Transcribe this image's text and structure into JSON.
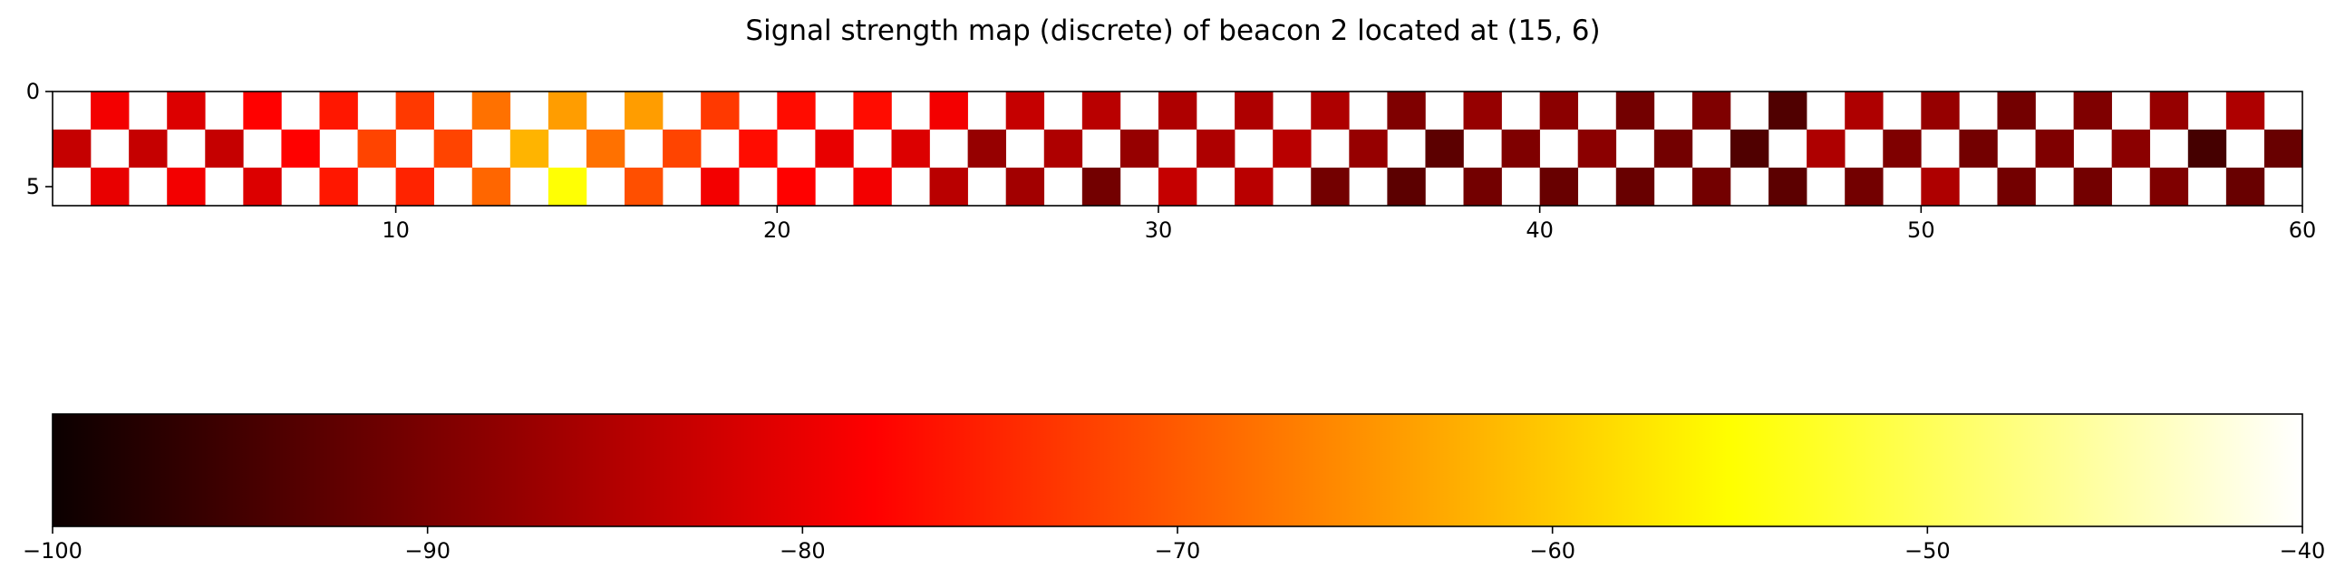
{
  "chart_data": [
    {
      "type": "heatmap",
      "title": "Signal strength map (discrete) of beacon 2 located at (15, 6)",
      "xlim": [
        1,
        60
      ],
      "ylim": [
        0,
        6
      ],
      "y_inverted": true,
      "x_ticks": [
        10,
        20,
        30,
        40,
        50,
        60
      ],
      "y_ticks": [
        0,
        5
      ],
      "colormap": "hot",
      "vmin": -100,
      "vmax": -40,
      "background": "#ffffff",
      "cells": [
        {
          "x": 3,
          "y": 1,
          "v": -80
        },
        {
          "x": 5,
          "y": 1,
          "v": -82
        },
        {
          "x": 7,
          "y": 1,
          "v": -78
        },
        {
          "x": 9,
          "y": 1,
          "v": -76
        },
        {
          "x": 11,
          "y": 1,
          "v": -73
        },
        {
          "x": 13,
          "y": 1,
          "v": -68
        },
        {
          "x": 15,
          "y": 1,
          "v": -64
        },
        {
          "x": 17,
          "y": 1,
          "v": -64
        },
        {
          "x": 19,
          "y": 1,
          "v": -73
        },
        {
          "x": 21,
          "y": 1,
          "v": -77
        },
        {
          "x": 23,
          "y": 1,
          "v": -77
        },
        {
          "x": 25,
          "y": 1,
          "v": -80
        },
        {
          "x": 27,
          "y": 1,
          "v": -84
        },
        {
          "x": 29,
          "y": 1,
          "v": -85
        },
        {
          "x": 31,
          "y": 1,
          "v": -86
        },
        {
          "x": 33,
          "y": 1,
          "v": -86
        },
        {
          "x": 35,
          "y": 1,
          "v": -86
        },
        {
          "x": 37,
          "y": 1,
          "v": -90
        },
        {
          "x": 39,
          "y": 1,
          "v": -88
        },
        {
          "x": 41,
          "y": 1,
          "v": -89
        },
        {
          "x": 43,
          "y": 1,
          "v": -91
        },
        {
          "x": 45,
          "y": 1,
          "v": -90
        },
        {
          "x": 47,
          "y": 1,
          "v": -94
        },
        {
          "x": 49,
          "y": 1,
          "v": -86
        },
        {
          "x": 51,
          "y": 1,
          "v": -88
        },
        {
          "x": 53,
          "y": 1,
          "v": -91
        },
        {
          "x": 55,
          "y": 1,
          "v": -90
        },
        {
          "x": 57,
          "y": 1,
          "v": -88
        },
        {
          "x": 59,
          "y": 1,
          "v": -86
        },
        {
          "x": 2,
          "y": 3,
          "v": -84
        },
        {
          "x": 4,
          "y": 3,
          "v": -84
        },
        {
          "x": 6,
          "y": 3,
          "v": -84
        },
        {
          "x": 8,
          "y": 3,
          "v": -78
        },
        {
          "x": 10,
          "y": 3,
          "v": -72
        },
        {
          "x": 12,
          "y": 3,
          "v": -72
        },
        {
          "x": 14,
          "y": 3,
          "v": -62
        },
        {
          "x": 16,
          "y": 3,
          "v": -68
        },
        {
          "x": 18,
          "y": 3,
          "v": -72
        },
        {
          "x": 20,
          "y": 3,
          "v": -77
        },
        {
          "x": 22,
          "y": 3,
          "v": -81
        },
        {
          "x": 24,
          "y": 3,
          "v": -82
        },
        {
          "x": 26,
          "y": 3,
          "v": -88
        },
        {
          "x": 28,
          "y": 3,
          "v": -86
        },
        {
          "x": 30,
          "y": 3,
          "v": -88
        },
        {
          "x": 32,
          "y": 3,
          "v": -86
        },
        {
          "x": 34,
          "y": 3,
          "v": -85
        },
        {
          "x": 36,
          "y": 3,
          "v": -88
        },
        {
          "x": 38,
          "y": 3,
          "v": -93
        },
        {
          "x": 40,
          "y": 3,
          "v": -90
        },
        {
          "x": 42,
          "y": 3,
          "v": -89
        },
        {
          "x": 44,
          "y": 3,
          "v": -91
        },
        {
          "x": 46,
          "y": 3,
          "v": -94
        },
        {
          "x": 48,
          "y": 3,
          "v": -86
        },
        {
          "x": 50,
          "y": 3,
          "v": -90
        },
        {
          "x": 52,
          "y": 3,
          "v": -91
        },
        {
          "x": 54,
          "y": 3,
          "v": -90
        },
        {
          "x": 56,
          "y": 3,
          "v": -89
        },
        {
          "x": 58,
          "y": 3,
          "v": -95
        },
        {
          "x": 60,
          "y": 3,
          "v": -92
        },
        {
          "x": 3,
          "y": 5,
          "v": -81
        },
        {
          "x": 5,
          "y": 5,
          "v": -80
        },
        {
          "x": 7,
          "y": 5,
          "v": -82
        },
        {
          "x": 9,
          "y": 5,
          "v": -76
        },
        {
          "x": 11,
          "y": 5,
          "v": -75
        },
        {
          "x": 13,
          "y": 5,
          "v": -69
        },
        {
          "x": 15,
          "y": 5,
          "v": -55
        },
        {
          "x": 17,
          "y": 5,
          "v": -71
        },
        {
          "x": 19,
          "y": 5,
          "v": -80
        },
        {
          "x": 21,
          "y": 5,
          "v": -78
        },
        {
          "x": 23,
          "y": 5,
          "v": -80
        },
        {
          "x": 25,
          "y": 5,
          "v": -85
        },
        {
          "x": 27,
          "y": 5,
          "v": -87
        },
        {
          "x": 29,
          "y": 5,
          "v": -91
        },
        {
          "x": 31,
          "y": 5,
          "v": -84
        },
        {
          "x": 33,
          "y": 5,
          "v": -85
        },
        {
          "x": 35,
          "y": 5,
          "v": -91
        },
        {
          "x": 37,
          "y": 5,
          "v": -93
        },
        {
          "x": 39,
          "y": 5,
          "v": -91
        },
        {
          "x": 41,
          "y": 5,
          "v": -92
        },
        {
          "x": 43,
          "y": 5,
          "v": -92
        },
        {
          "x": 45,
          "y": 5,
          "v": -91
        },
        {
          "x": 47,
          "y": 5,
          "v": -93
        },
        {
          "x": 49,
          "y": 5,
          "v": -91
        },
        {
          "x": 51,
          "y": 5,
          "v": -86
        },
        {
          "x": 53,
          "y": 5,
          "v": -91
        },
        {
          "x": 55,
          "y": 5,
          "v": -91
        },
        {
          "x": 57,
          "y": 5,
          "v": -90
        },
        {
          "x": 59,
          "y": 5,
          "v": -92
        }
      ]
    },
    {
      "type": "colorbar",
      "orientation": "horizontal",
      "colormap": "hot",
      "vmin": -100,
      "vmax": -40,
      "ticks": [
        -100,
        -90,
        -80,
        -70,
        -60,
        -50,
        -40
      ],
      "tick_labels": [
        "−100",
        "−90",
        "−80",
        "−70",
        "−60",
        "−50",
        "−40"
      ]
    }
  ]
}
